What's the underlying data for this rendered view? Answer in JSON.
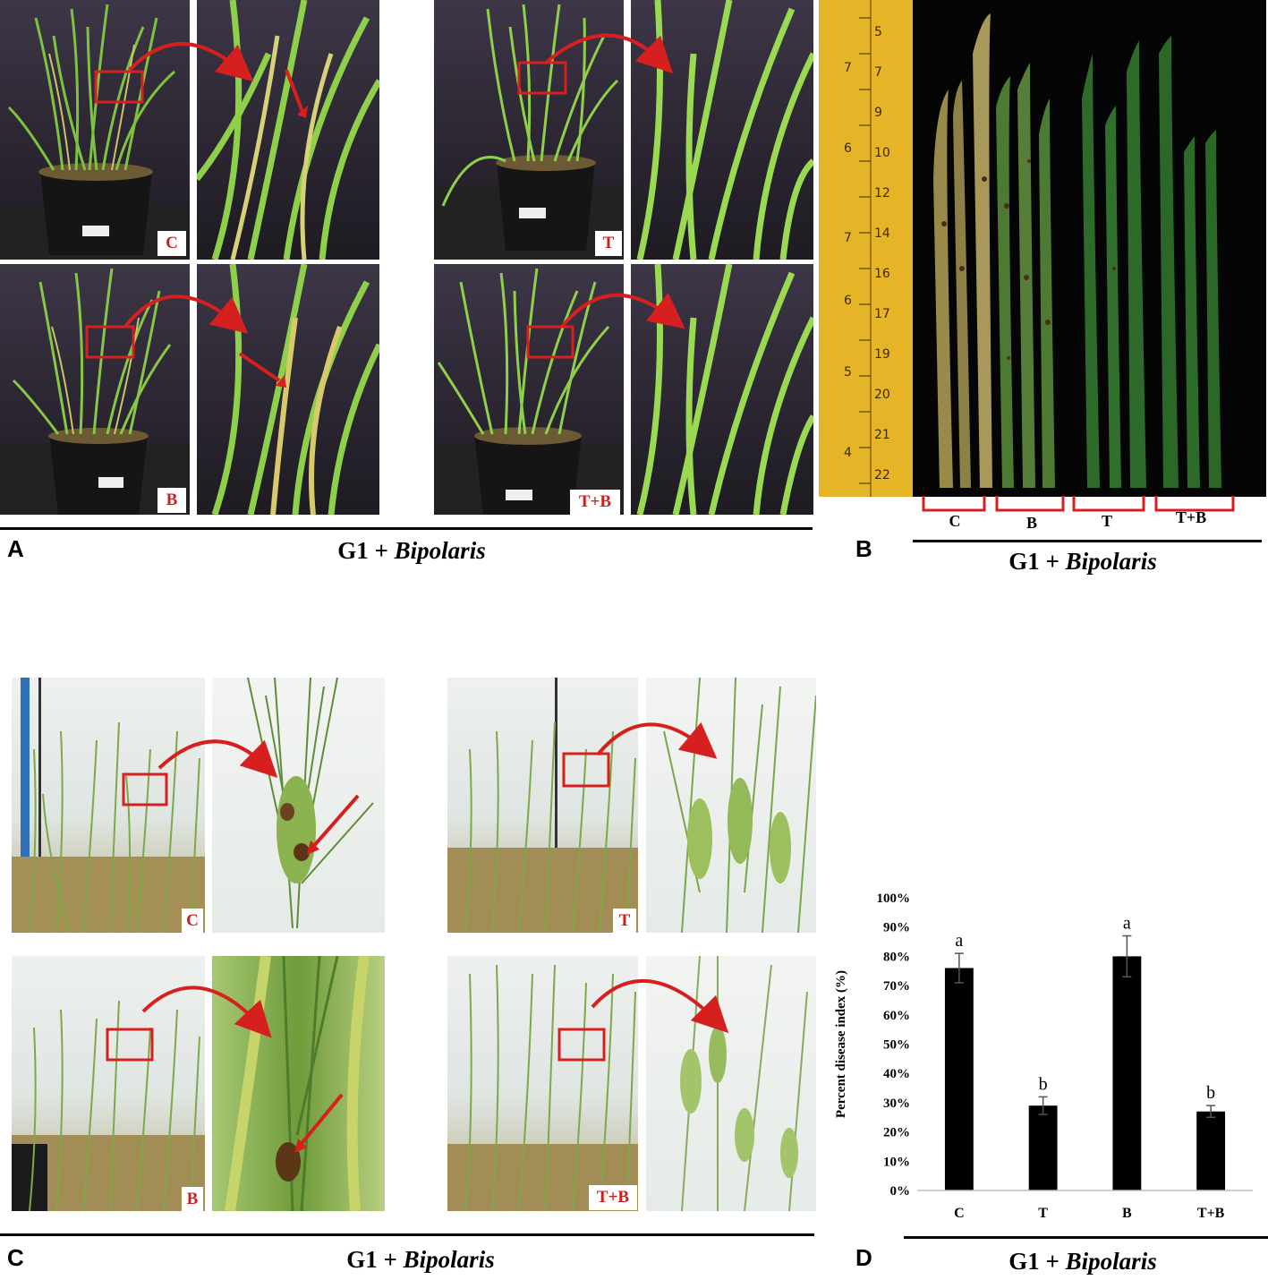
{
  "figure": {
    "panels": {
      "A": {
        "letter": "A",
        "caption_prefix": "G1 + ",
        "caption_italic": "Bipolaris",
        "treatments": [
          "C",
          "T",
          "B",
          "T+B"
        ]
      },
      "B": {
        "letter": "B",
        "caption_prefix": "G1 + ",
        "caption_italic": "Bipolaris",
        "groups": [
          "C",
          "B",
          "T",
          "T+B"
        ]
      },
      "C": {
        "letter": "C",
        "caption_prefix": "G1 + ",
        "caption_italic": "Bipolaris",
        "treatments": [
          "C",
          "T",
          "B",
          "T+B"
        ]
      },
      "D": {
        "letter": "D",
        "caption_prefix": "G1 + ",
        "caption_italic": "Bipolaris"
      }
    },
    "colors": {
      "highlight_red": "#d62020",
      "bar_fill": "#000000",
      "leaf_green": "#2f7d2a",
      "plant_green": "#7cc23e"
    }
  },
  "chart_data": {
    "type": "bar",
    "categories": [
      "C",
      "T",
      "B",
      "T+B"
    ],
    "values": [
      76,
      29,
      80,
      27
    ],
    "errors": [
      5,
      3,
      7,
      2
    ],
    "significance": [
      "a",
      "b",
      "a",
      "b"
    ],
    "ylabel": "Percent disease index (%)",
    "ylim": [
      0,
      100
    ],
    "yticks": [
      "0%",
      "10%",
      "20%",
      "30%",
      "40%",
      "50%",
      "60%",
      "70%",
      "80%",
      "90%",
      "100%"
    ],
    "grid": false,
    "legend": "none"
  }
}
